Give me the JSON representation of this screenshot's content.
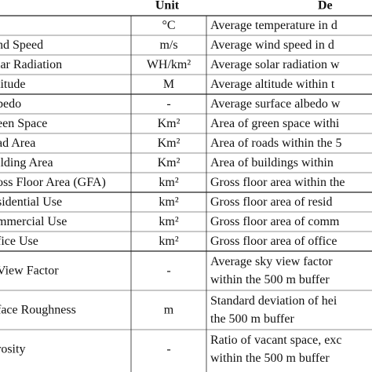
{
  "table": {
    "header": {
      "unit": "Unit",
      "description": "De"
    },
    "rows": [
      {
        "unit": "°C",
        "description": [
          "Average temperature in d"
        ]
      },
      {
        "variable": "nd Speed",
        "unit": "m/s",
        "description": [
          "Average wind speed in d"
        ]
      },
      {
        "variable": "lar Radiation",
        "unit": "WH/km²",
        "description": [
          "Average solar radiation w"
        ]
      },
      {
        "variable": "titude",
        "unit": "M",
        "description": [
          "Average altitude within t"
        ]
      },
      {
        "variable": "bedo",
        "unit": "-",
        "description": [
          "Average surface albedo w"
        ]
      },
      {
        "variable": "een Space",
        "unit": "Km²",
        "description": [
          "Area of green space withi"
        ]
      },
      {
        "variable": "ad Area",
        "unit": "Km²",
        "description": [
          "Area of roads within the 5"
        ]
      },
      {
        "variable": "ilding Area",
        "unit": "Km²",
        "description": [
          "Area of buildings within"
        ]
      },
      {
        "variable": "oss Floor Area (GFA)",
        "unit": "km²",
        "description": [
          "Gross floor area within the"
        ]
      },
      {
        "variable": "sidential Use",
        "unit": "km²",
        "description": [
          "Gross floor area of resid"
        ]
      },
      {
        "variable": "mmercial Use",
        "unit": "km²",
        "description": [
          "Gross floor area of comm"
        ]
      },
      {
        "variable": "fice Use",
        "unit": "km²",
        "description": [
          "Gross floor area of office"
        ]
      },
      {
        "variable": "View Factor",
        "unit": "-",
        "description": [
          "Average sky view factor",
          "within the 500 m buffer"
        ]
      },
      {
        "variable": "face Roughness",
        "unit": "m",
        "description": [
          "Standard deviation of hei",
          "the 500 m buffer"
        ]
      },
      {
        "variable": "rosity",
        "unit": "-",
        "description": [
          "Ratio of vacant space, exc",
          "within the 500 m buffer"
        ]
      }
    ]
  }
}
